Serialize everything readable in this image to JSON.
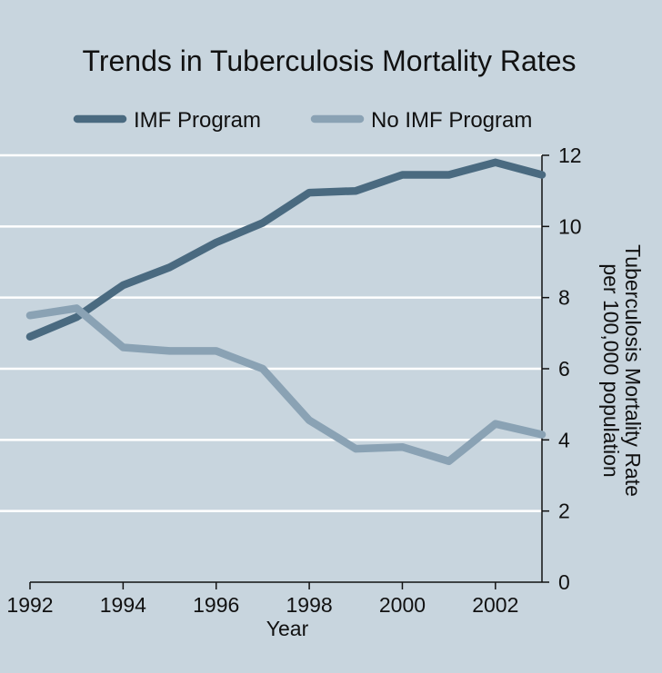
{
  "chart_data": {
    "type": "line",
    "title": "Trends in Tuberculosis Mortality Rates",
    "xlabel": "Year",
    "ylabel_line1": "Tuberculosis Mortality Rate",
    "ylabel_line2": "per 100,000 population",
    "x": [
      1992,
      1993,
      1994,
      1995,
      1996,
      1997,
      1998,
      1999,
      2000,
      2001,
      2002,
      2003
    ],
    "xlim": [
      1992,
      2003
    ],
    "ylim": [
      0,
      12
    ],
    "x_ticks": [
      1992,
      1994,
      1996,
      1998,
      2000,
      2002
    ],
    "y_ticks": [
      0,
      2,
      4,
      6,
      8,
      10,
      12
    ],
    "y_axis_side": "right",
    "grid": true,
    "legend_position": "top",
    "series": [
      {
        "name": "IMF Program",
        "color": "#4a6a80",
        "values": [
          6.9,
          7.45,
          8.35,
          8.85,
          9.55,
          10.1,
          10.95,
          11.0,
          11.45,
          11.45,
          11.8,
          11.45
        ]
      },
      {
        "name": "No IMF Program",
        "color": "#8aa2b4",
        "values": [
          7.5,
          7.7,
          6.6,
          6.5,
          6.5,
          6.0,
          4.55,
          3.75,
          3.8,
          3.4,
          4.45,
          4.15
        ]
      }
    ]
  }
}
